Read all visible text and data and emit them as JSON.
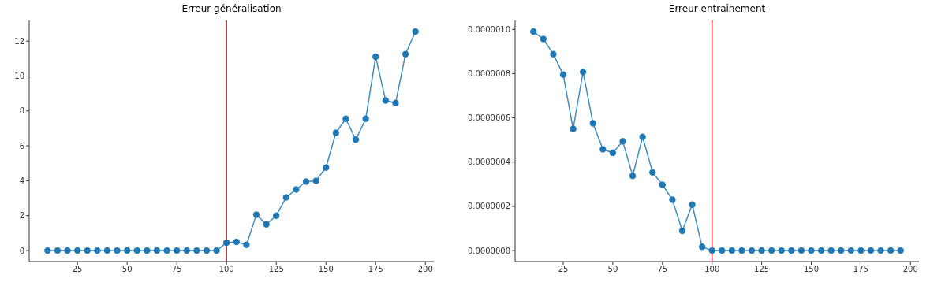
{
  "chart_data": [
    {
      "type": "line",
      "title": "Erreur généralisation",
      "x": [
        10,
        15,
        20,
        25,
        30,
        35,
        40,
        45,
        50,
        55,
        60,
        65,
        70,
        75,
        80,
        85,
        90,
        95,
        100,
        105,
        110,
        115,
        120,
        125,
        130,
        135,
        140,
        145,
        150,
        155,
        160,
        165,
        170,
        175,
        180,
        185,
        190,
        195
      ],
      "values": [
        0,
        0,
        0,
        0,
        0,
        0,
        0,
        0,
        0,
        0,
        0,
        0,
        0,
        0,
        0,
        0,
        0,
        0,
        0.45,
        0.5,
        0.33,
        2.05,
        1.5,
        2.0,
        3.05,
        3.5,
        3.95,
        4.0,
        4.75,
        6.75,
        7.55,
        6.35,
        7.55,
        11.1,
        8.6,
        8.45,
        11.25,
        12.55
      ],
      "color": "#1f77b4",
      "marker": "circle",
      "xlim": [
        0.75,
        204.25
      ],
      "xticks": [
        25,
        50,
        75,
        100,
        125,
        150,
        175,
        200
      ],
      "ylim": [
        -0.63,
        13.18
      ],
      "yticks": [
        0,
        2,
        4,
        6,
        8,
        10,
        12
      ],
      "ref_lines": [
        {
          "axis": "x",
          "value": 100,
          "color": "#d62728"
        }
      ]
    },
    {
      "type": "line",
      "title": "Erreur entrainement",
      "x": [
        10,
        15,
        20,
        25,
        30,
        35,
        40,
        45,
        50,
        55,
        60,
        65,
        70,
        75,
        80,
        85,
        90,
        95,
        100,
        105,
        110,
        115,
        120,
        125,
        130,
        135,
        140,
        145,
        150,
        155,
        160,
        165,
        170,
        175,
        180,
        185,
        190,
        195
      ],
      "values": [
        9.9e-07,
        9.56e-07,
        8.88e-07,
        7.95e-07,
        5.5e-07,
        8.08e-07,
        5.75e-07,
        4.58e-07,
        4.42e-07,
        4.94e-07,
        3.38e-07,
        5.14e-07,
        3.54e-07,
        2.98e-07,
        2.3e-07,
        8.9e-08,
        2.08e-07,
        1.7e-08,
        0,
        0,
        0,
        0,
        0,
        0,
        0,
        0,
        0,
        0,
        0,
        0,
        0,
        0,
        0,
        0,
        0,
        0,
        0,
        0
      ],
      "color": "#1f77b4",
      "marker": "circle",
      "xlim": [
        0.75,
        204.25
      ],
      "xticks": [
        25,
        50,
        75,
        100,
        125,
        150,
        175,
        200
      ],
      "ylim": [
        -4.95e-08,
        1.04e-06
      ],
      "yticks": [
        {
          "value": 0,
          "label": "0.0000000"
        },
        {
          "value": 2e-07,
          "label": "0.0000002"
        },
        {
          "value": 4e-07,
          "label": "0.0000004"
        },
        {
          "value": 6e-07,
          "label": "0.0000006"
        },
        {
          "value": 8e-07,
          "label": "0.0000008"
        },
        {
          "value": 1e-06,
          "label": "0.0000010"
        }
      ],
      "ref_lines": [
        {
          "axis": "x",
          "value": 100,
          "color": "#d62728"
        }
      ]
    }
  ]
}
